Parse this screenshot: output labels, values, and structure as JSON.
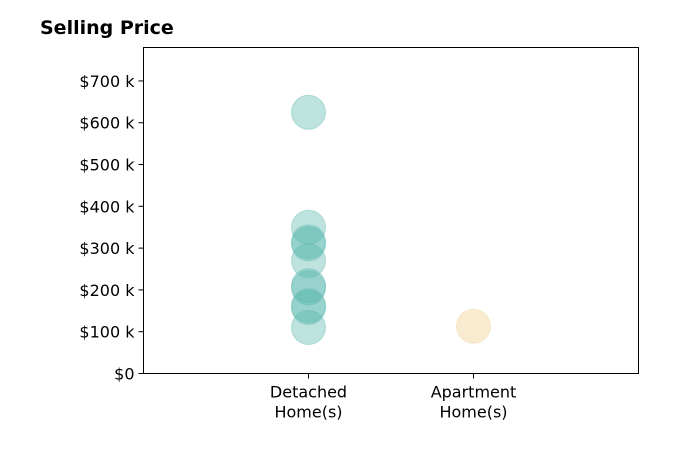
{
  "chart_data": {
    "type": "scatter",
    "title": "Selling Price",
    "xlabel": "",
    "ylabel": "",
    "categories": [
      [
        "Detached",
        "Home(s)"
      ],
      [
        "Apartment",
        "Home(s)"
      ]
    ],
    "xlim": [
      -1,
      2
    ],
    "ylim": [
      0,
      780000
    ],
    "yticks": [
      0,
      100000,
      200000,
      300000,
      400000,
      500000,
      600000,
      700000
    ],
    "ytick_labels": [
      "$0",
      "$100 k",
      "$200 k",
      "$300 k",
      "$400 k",
      "$500 k",
      "$600 k",
      "$700 k"
    ],
    "grid": false,
    "legend": "none",
    "series": [
      {
        "category_index": 0,
        "color": "#5cb8ae",
        "opacity": 0.4,
        "values": [
          625000,
          350000,
          315000,
          310000,
          270000,
          210000,
          205000,
          162000,
          158000,
          110000
        ]
      },
      {
        "category_index": 1,
        "color": "#f5deb0",
        "opacity": 0.6,
        "values": [
          113000
        ]
      }
    ]
  }
}
